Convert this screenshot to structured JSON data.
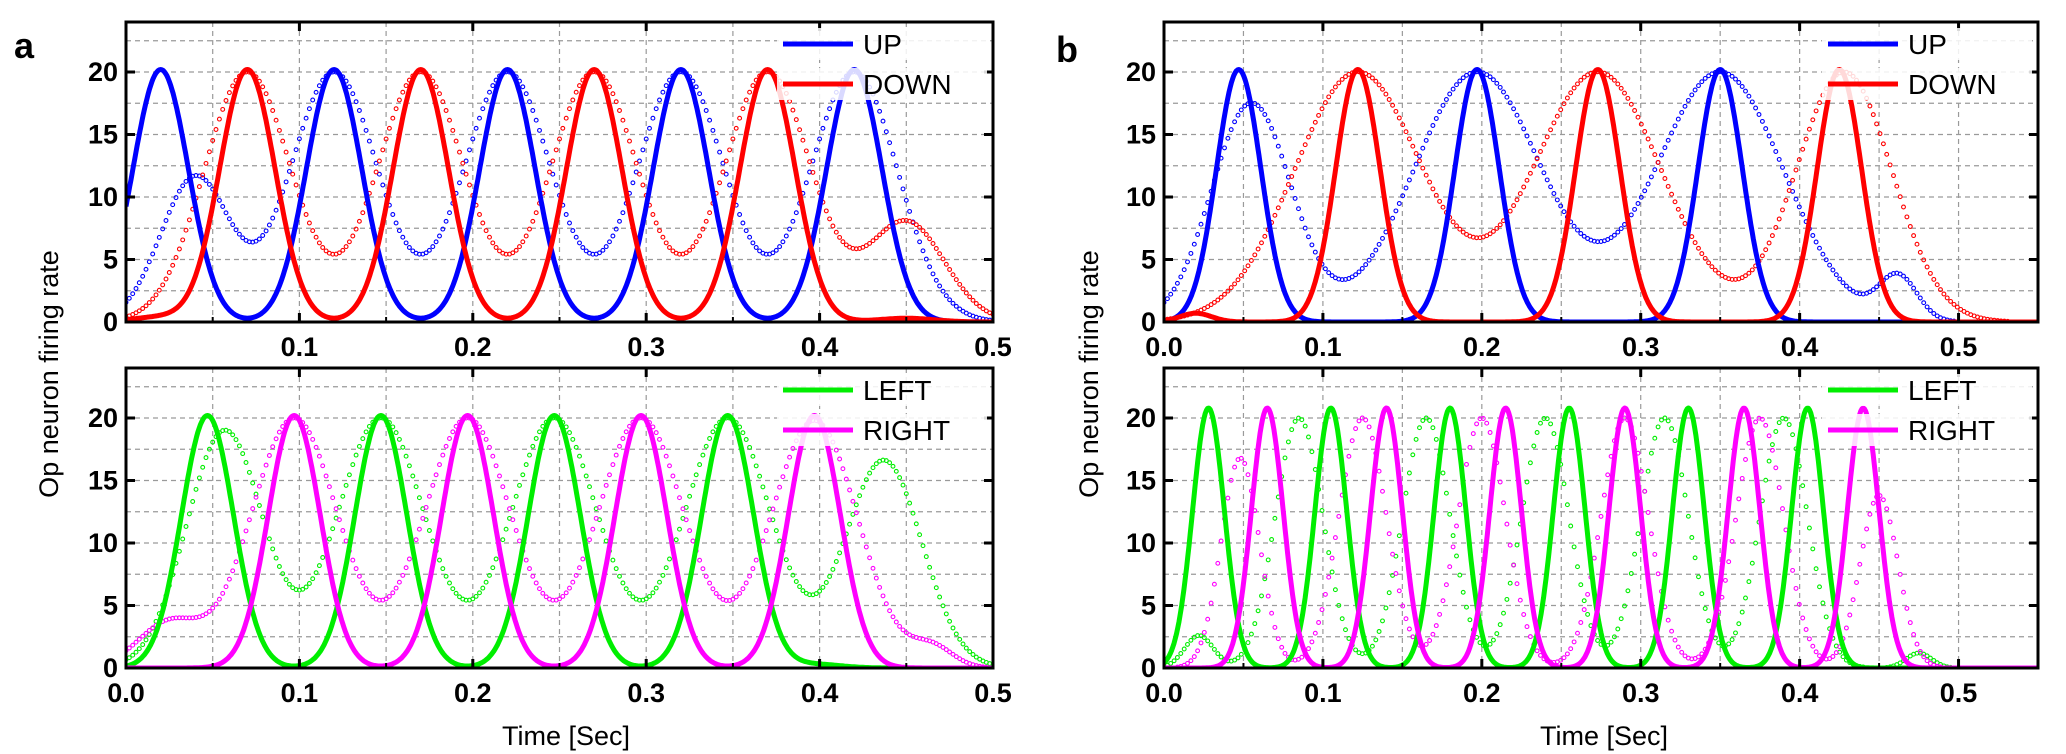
{
  "figure": {
    "y_label": "Op neuron firing rate",
    "x_label": "Time [Sec]"
  },
  "chart_data": [
    {
      "panel": "a",
      "position": "top",
      "type": "line",
      "xlim": [
        0.0,
        0.5
      ],
      "ylim": [
        0,
        24
      ],
      "xticks": [
        0.1,
        0.2,
        0.3,
        0.4,
        0.5
      ],
      "xtick_labels": [
        "0.1",
        "0.2",
        "0.3",
        "0.4",
        "0.5"
      ],
      "yticks": [
        0,
        5,
        10,
        15,
        20
      ],
      "ytick_labels": [
        "0",
        "5",
        "10",
        "15",
        "20"
      ],
      "grid": true,
      "legend": "top-right",
      "series": [
        {
          "name": "UP",
          "color": "#0000ff",
          "style": "solid",
          "peaks": [
            [
              0.02,
              20.2,
              0.016
            ],
            [
              0.12,
              20.2,
              0.016
            ],
            [
              0.22,
              20.2,
              0.016
            ],
            [
              0.32,
              20.2,
              0.016
            ],
            [
              0.42,
              20.2,
              0.016
            ]
          ]
        },
        {
          "name": "DOWN",
          "color": "#ff0000",
          "style": "solid",
          "peaks": [
            [
              0.02,
              0.4,
              0.016
            ],
            [
              0.07,
              20.2,
              0.016
            ],
            [
              0.17,
              20.2,
              0.016
            ],
            [
              0.27,
              20.2,
              0.016
            ],
            [
              0.37,
              20.2,
              0.016
            ],
            [
              0.45,
              0.3,
              0.016
            ]
          ]
        },
        {
          "name": "UP (dotted)",
          "color": "#0000ff",
          "style": "dotted",
          "peaks": [
            [
              0.04,
              11.6,
              0.02
            ],
            [
              0.12,
              20.0,
              0.025
            ],
            [
              0.22,
              20.0,
              0.025
            ],
            [
              0.32,
              20.0,
              0.025
            ],
            [
              0.42,
              20.0,
              0.025
            ]
          ]
        },
        {
          "name": "DOWN (dotted)",
          "color": "#ff0000",
          "style": "dotted",
          "peaks": [
            [
              0.07,
              20.0,
              0.025
            ],
            [
              0.17,
              20.0,
              0.025
            ],
            [
              0.27,
              20.0,
              0.025
            ],
            [
              0.37,
              20.0,
              0.025
            ],
            [
              0.45,
              8.0,
              0.022
            ]
          ]
        }
      ],
      "legend_entries": [
        {
          "label": "UP",
          "color": "#0000ff"
        },
        {
          "label": "DOWN",
          "color": "#ff0000"
        }
      ]
    },
    {
      "panel": "a",
      "position": "bottom",
      "type": "line",
      "xlim": [
        0.0,
        0.5
      ],
      "ylim": [
        0,
        24
      ],
      "xticks": [
        0.0,
        0.1,
        0.2,
        0.3,
        0.4,
        0.5
      ],
      "xtick_labels": [
        "0.0",
        "0.1",
        "0.2",
        "0.3",
        "0.4",
        "0.5"
      ],
      "yticks": [
        0,
        5,
        10,
        15,
        20
      ],
      "ytick_labels": [
        "0",
        "5",
        "10",
        "15",
        "20"
      ],
      "grid": true,
      "legend": "top-right",
      "series": [
        {
          "name": "LEFT",
          "color": "#00ee00",
          "style": "solid",
          "peaks": [
            [
              0.047,
              20.2,
              0.015
            ],
            [
              0.147,
              20.2,
              0.015
            ],
            [
              0.247,
              20.2,
              0.015
            ],
            [
              0.347,
              20.2,
              0.015
            ],
            [
              0.397,
              0.3,
              0.015
            ]
          ]
        },
        {
          "name": "RIGHT",
          "color": "#ff00ff",
          "style": "solid",
          "peaks": [
            [
              0.097,
              20.2,
              0.015
            ],
            [
              0.197,
              20.2,
              0.015
            ],
            [
              0.297,
              20.2,
              0.015
            ],
            [
              0.397,
              20.2,
              0.015
            ]
          ]
        },
        {
          "name": "LEFT (dotted)",
          "color": "#00ee00",
          "style": "dotted",
          "peaks": [
            [
              0.057,
              19.0,
              0.022
            ],
            [
              0.147,
              20.0,
              0.025
            ],
            [
              0.247,
              20.0,
              0.025
            ],
            [
              0.347,
              20.0,
              0.025
            ],
            [
              0.437,
              16.6,
              0.022
            ]
          ]
        },
        {
          "name": "RIGHT (dotted)",
          "color": "#ff00ff",
          "style": "dotted",
          "peaks": [
            [
              0.025,
              3.6,
              0.018
            ],
            [
              0.097,
              20.0,
              0.025
            ],
            [
              0.197,
              20.0,
              0.025
            ],
            [
              0.297,
              20.0,
              0.025
            ],
            [
              0.397,
              19.8,
              0.025
            ],
            [
              0.465,
              1.6,
              0.012
            ]
          ]
        }
      ],
      "legend_entries": [
        {
          "label": "LEFT",
          "color": "#00ee00"
        },
        {
          "label": "RIGHT",
          "color": "#ff00ff"
        }
      ]
    },
    {
      "panel": "b",
      "position": "top",
      "type": "line",
      "xlim": [
        0.0,
        0.55
      ],
      "ylim": [
        0,
        24
      ],
      "xticks": [
        0.0,
        0.1,
        0.2,
        0.3,
        0.4,
        0.5
      ],
      "xtick_labels": [
        "0.0",
        "0.1",
        "0.2",
        "0.3",
        "0.4",
        "0.5"
      ],
      "yticks": [
        0,
        5,
        10,
        15,
        20
      ],
      "ytick_labels": [
        "0",
        "5",
        "10",
        "15",
        "20"
      ],
      "grid": true,
      "legend": "top-right",
      "series": [
        {
          "name": "UP",
          "color": "#0000ff",
          "style": "solid",
          "peaks": [
            [
              0.047,
              20.2,
              0.014
            ],
            [
              0.197,
              20.2,
              0.014
            ],
            [
              0.35,
              20.2,
              0.014
            ]
          ]
        },
        {
          "name": "DOWN",
          "color": "#ff0000",
          "style": "solid",
          "peaks": [
            [
              0.02,
              0.7,
              0.01
            ],
            [
              0.122,
              20.2,
              0.014
            ],
            [
              0.273,
              20.2,
              0.014
            ],
            [
              0.425,
              20.2,
              0.014
            ]
          ]
        },
        {
          "name": "UP (dotted)",
          "color": "#0000ff",
          "style": "dotted",
          "peaks": [
            [
              0.055,
              17.5,
              0.025
            ],
            [
              0.197,
              20.0,
              0.04
            ],
            [
              0.35,
              20.0,
              0.04
            ],
            [
              0.462,
              3.5,
              0.012
            ]
          ]
        },
        {
          "name": "DOWN (dotted)",
          "color": "#ff0000",
          "style": "dotted",
          "peaks": [
            [
              0.122,
              20.0,
              0.04
            ],
            [
              0.273,
              20.0,
              0.04
            ],
            [
              0.428,
              20.0,
              0.03
            ]
          ]
        }
      ],
      "legend_entries": [
        {
          "label": "UP",
          "color": "#0000ff"
        },
        {
          "label": "DOWN",
          "color": "#ff0000"
        }
      ]
    },
    {
      "panel": "b",
      "position": "bottom",
      "type": "line",
      "xlim": [
        0.0,
        0.55
      ],
      "ylim": [
        0,
        24
      ],
      "xticks": [
        0.0,
        0.1,
        0.2,
        0.3,
        0.4,
        0.5
      ],
      "xtick_labels": [
        "0.0",
        "0.1",
        "0.2",
        "0.3",
        "0.4",
        "0.5"
      ],
      "yticks": [
        0,
        5,
        10,
        15,
        20
      ],
      "ytick_labels": [
        "0",
        "5",
        "10",
        "15",
        "20"
      ],
      "grid": true,
      "legend": "top-right",
      "series": [
        {
          "name": "LEFT",
          "color": "#00ee00",
          "style": "solid",
          "peaks": [
            [
              0.028,
              20.8,
              0.01
            ],
            [
              0.105,
              20.8,
              0.01
            ],
            [
              0.18,
              20.8,
              0.01
            ],
            [
              0.255,
              20.8,
              0.01
            ],
            [
              0.33,
              20.8,
              0.01
            ],
            [
              0.405,
              20.8,
              0.01
            ]
          ]
        },
        {
          "name": "RIGHT",
          "color": "#ff00ff",
          "style": "solid",
          "peaks": [
            [
              0.065,
              20.8,
              0.01
            ],
            [
              0.14,
              20.8,
              0.01
            ],
            [
              0.215,
              20.8,
              0.01
            ],
            [
              0.29,
              20.8,
              0.01
            ],
            [
              0.365,
              20.8,
              0.01
            ],
            [
              0.44,
              20.8,
              0.01
            ]
          ]
        },
        {
          "name": "LEFT (dotted)",
          "color": "#00ee00",
          "style": "dotted",
          "peaks": [
            [
              0.022,
              2.6,
              0.009
            ],
            [
              0.085,
              20.0,
              0.015
            ],
            [
              0.165,
              20.0,
              0.015
            ],
            [
              0.24,
              20.0,
              0.015
            ],
            [
              0.315,
              20.0,
              0.015
            ],
            [
              0.39,
              20.0,
              0.015
            ],
            [
              0.475,
              1.2,
              0.008
            ]
          ]
        },
        {
          "name": "RIGHT (dotted)",
          "color": "#ff00ff",
          "style": "dotted",
          "peaks": [
            [
              0.048,
              16.8,
              0.012
            ],
            [
              0.125,
              20.0,
              0.015
            ],
            [
              0.2,
              20.0,
              0.015
            ],
            [
              0.29,
              20.0,
              0.015
            ],
            [
              0.375,
              20.0,
              0.015
            ],
            [
              0.45,
              13.8,
              0.012
            ]
          ]
        }
      ],
      "legend_entries": [
        {
          "label": "LEFT",
          "color": "#00ee00"
        },
        {
          "label": "RIGHT",
          "color": "#ff00ff"
        }
      ]
    }
  ],
  "panel_labels": [
    "a",
    "b"
  ]
}
